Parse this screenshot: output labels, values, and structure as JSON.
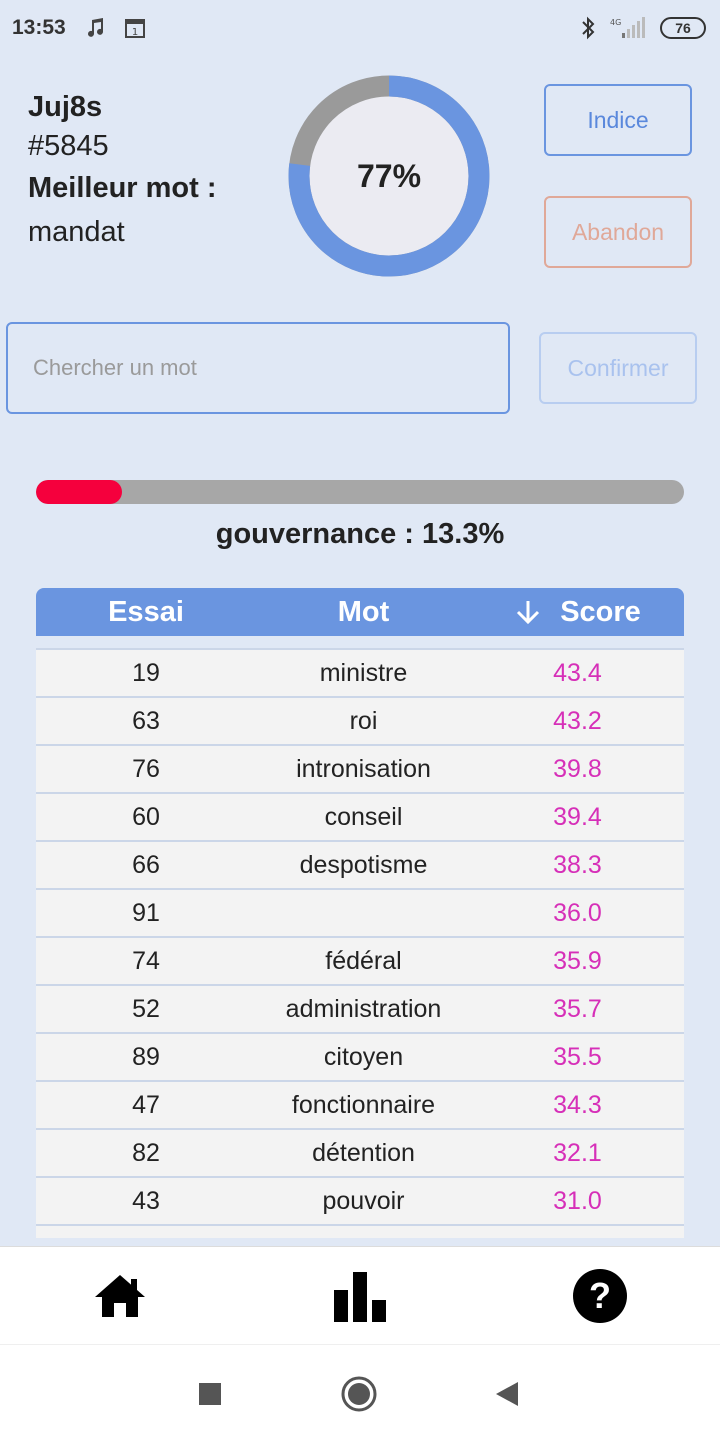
{
  "status_bar": {
    "time": "13:53",
    "network": "4G",
    "battery": "76"
  },
  "player": {
    "name": "Juj8s",
    "game_number": "#5845",
    "best_label": "Meilleur mot :",
    "best_word": "mandat"
  },
  "gauge": {
    "label": "77%",
    "value": 0.77,
    "fill_color": "#6a95e0",
    "track_color": "#9a9a9a"
  },
  "buttons": {
    "hint": "Indice",
    "give_up": "Abandon",
    "confirm": "Confirmer"
  },
  "search": {
    "placeholder": "Chercher un mot",
    "value": ""
  },
  "last_guess": {
    "label": "gouvernance : 13.3%",
    "progress": 0.133,
    "fill_color": "#f5003d"
  },
  "table": {
    "headers": {
      "essai": "Essai",
      "mot": "Mot",
      "score": "Score",
      "sort_icon": "arrow-down-icon"
    },
    "rows": [
      {
        "essai": "19",
        "mot": "ministre",
        "score": "43.4"
      },
      {
        "essai": "63",
        "mot": "roi",
        "score": "43.2"
      },
      {
        "essai": "76",
        "mot": "intronisation",
        "score": "39.8"
      },
      {
        "essai": "60",
        "mot": "conseil",
        "score": "39.4"
      },
      {
        "essai": "66",
        "mot": "despotisme",
        "score": "38.3"
      },
      {
        "essai": "91",
        "mot": "",
        "score": "36.0"
      },
      {
        "essai": "74",
        "mot": "fédéral",
        "score": "35.9"
      },
      {
        "essai": "52",
        "mot": "administration",
        "score": "35.7"
      },
      {
        "essai": "89",
        "mot": "citoyen",
        "score": "35.5"
      },
      {
        "essai": "47",
        "mot": "fonctionnaire",
        "score": "34.3"
      },
      {
        "essai": "82",
        "mot": "détention",
        "score": "32.1"
      },
      {
        "essai": "43",
        "mot": "pouvoir",
        "score": "31.0"
      }
    ]
  },
  "nav": {
    "items": [
      "home-icon",
      "stats-icon",
      "help-icon"
    ]
  },
  "system_nav": {
    "items": [
      "recent-apps-icon",
      "home-circle-icon",
      "back-icon"
    ]
  }
}
